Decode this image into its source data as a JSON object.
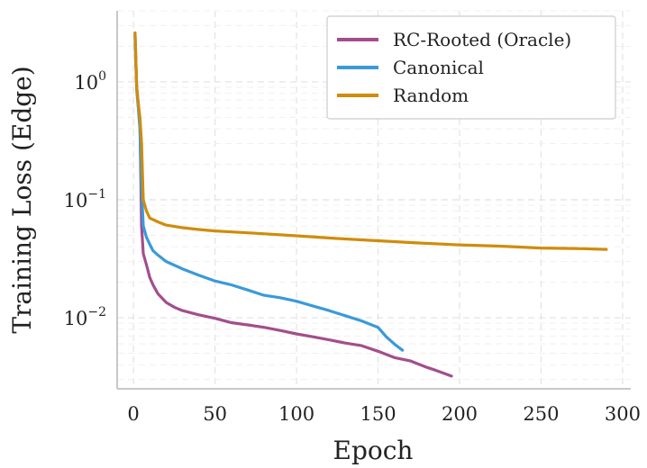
{
  "chart_data": {
    "type": "line",
    "title": "",
    "xlabel": "Epoch",
    "ylabel": "Training Loss (Edge)",
    "yscale": "log",
    "xlim": [
      -10,
      305
    ],
    "ylim": [
      0.0025,
      4.0
    ],
    "grid": true,
    "legend_position": "top-right",
    "x_ticks": [
      0,
      50,
      100,
      150,
      200,
      250,
      300
    ],
    "y_ticks": [
      {
        "value": 1,
        "base": "10",
        "exp": "0"
      },
      {
        "value": 0.1,
        "base": "10",
        "exp": "−1"
      },
      {
        "value": 0.01,
        "base": "10",
        "exp": "−2"
      }
    ],
    "series": [
      {
        "name": "RC-Rooted (Oracle)",
        "color": "#a34e8c",
        "x": [
          1,
          2,
          3,
          4,
          5,
          6,
          8,
          10,
          12,
          15,
          20,
          25,
          30,
          40,
          50,
          60,
          70,
          80,
          90,
          100,
          110,
          120,
          130,
          140,
          150,
          160,
          170,
          180,
          185,
          190,
          195
        ],
        "y": [
          2.5,
          0.9,
          0.65,
          0.45,
          0.06,
          0.035,
          0.028,
          0.022,
          0.019,
          0.016,
          0.0135,
          0.0123,
          0.0115,
          0.0106,
          0.0099,
          0.0091,
          0.0087,
          0.0083,
          0.0078,
          0.0073,
          0.0069,
          0.0065,
          0.0061,
          0.0058,
          0.0052,
          0.0046,
          0.0043,
          0.0038,
          0.0036,
          0.0034,
          0.0032
        ]
      },
      {
        "name": "Canonical",
        "color": "#3a9ad9",
        "x": [
          1,
          2,
          3,
          4,
          5,
          6,
          8,
          10,
          12,
          15,
          20,
          30,
          40,
          50,
          60,
          70,
          80,
          90,
          100,
          110,
          120,
          130,
          140,
          150,
          155,
          160,
          165
        ],
        "y": [
          2.3,
          0.85,
          0.6,
          0.4,
          0.12,
          0.06,
          0.048,
          0.042,
          0.037,
          0.034,
          0.03,
          0.026,
          0.023,
          0.0205,
          0.019,
          0.0172,
          0.0155,
          0.0148,
          0.0138,
          0.0126,
          0.0115,
          0.0104,
          0.0094,
          0.0083,
          0.0069,
          0.006,
          0.0053
        ]
      },
      {
        "name": "Random",
        "color": "#d08c0c",
        "x": [
          1,
          2,
          3,
          4,
          5,
          6,
          8,
          10,
          15,
          20,
          30,
          40,
          50,
          75,
          100,
          125,
          150,
          175,
          200,
          225,
          250,
          275,
          290
        ],
        "y": [
          2.6,
          0.9,
          0.65,
          0.5,
          0.3,
          0.1,
          0.08,
          0.07,
          0.065,
          0.061,
          0.058,
          0.056,
          0.0545,
          0.052,
          0.0495,
          0.047,
          0.045,
          0.043,
          0.0415,
          0.0405,
          0.039,
          0.0385,
          0.038
        ]
      }
    ]
  }
}
